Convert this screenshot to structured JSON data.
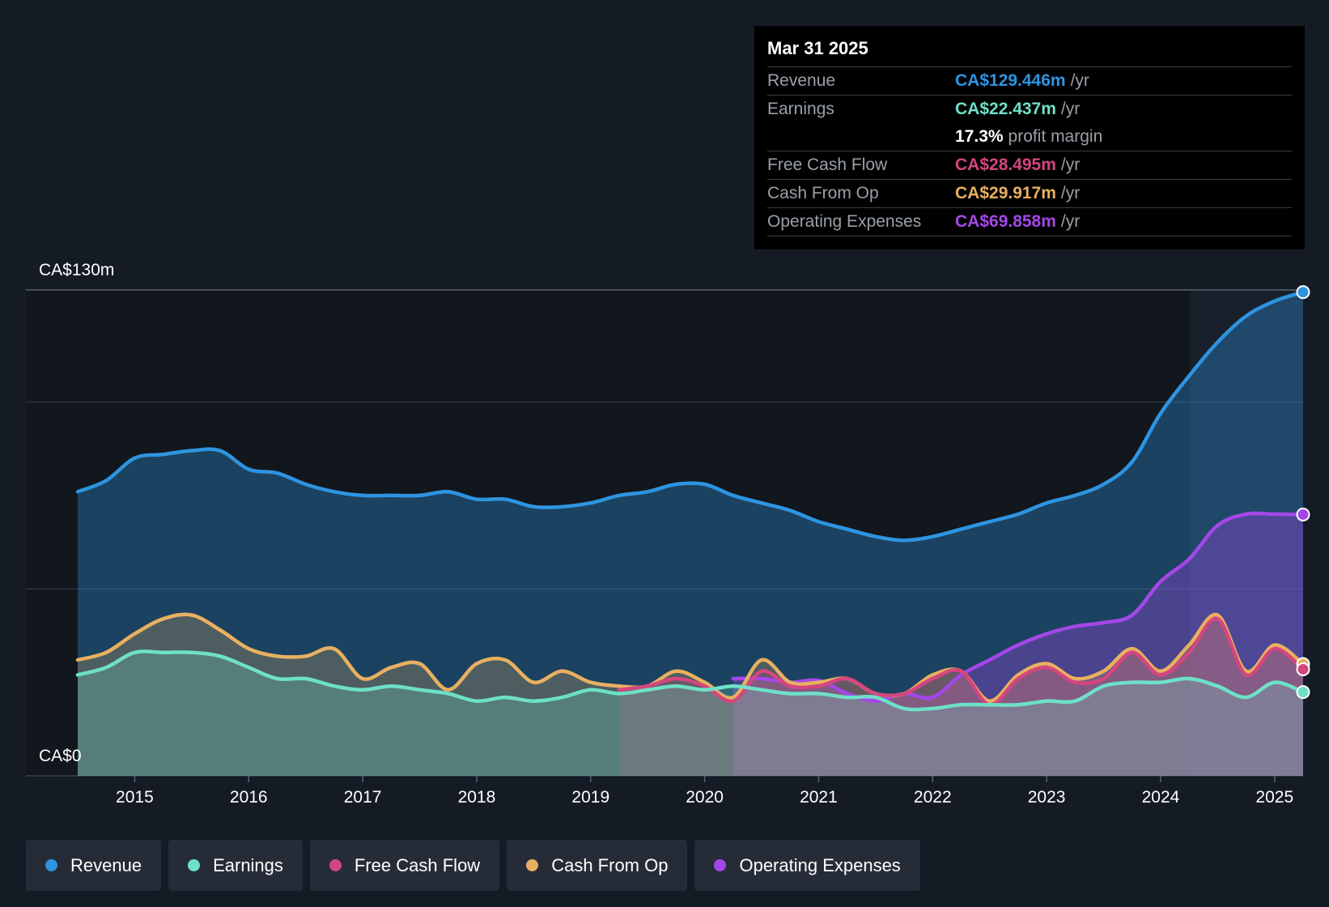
{
  "chart_data": {
    "type": "area",
    "y_axis": {
      "top_label": "CA$130m",
      "bottom_label": "CA$0",
      "ylim": [
        0,
        130
      ]
    },
    "x_axis": {
      "ticks": [
        "2015",
        "2016",
        "2017",
        "2018",
        "2019",
        "2020",
        "2021",
        "2022",
        "2023",
        "2024",
        "2025"
      ],
      "xlim": [
        2014.5,
        2025.25
      ]
    },
    "colors": {
      "Revenue": "#2e94e0",
      "Earnings": "#6ee0c8",
      "Free Cash Flow": "#d4467f",
      "Cash From Op": "#e8b060",
      "Operating Expenses": "#a447e8"
    },
    "series": [
      {
        "name": "Revenue",
        "x": [
          2014.5,
          2014.75,
          2015.0,
          2015.25,
          2015.5,
          2015.75,
          2016.0,
          2016.25,
          2016.5,
          2016.75,
          2017.0,
          2017.25,
          2017.5,
          2017.75,
          2018.0,
          2018.25,
          2018.5,
          2018.75,
          2019.0,
          2019.25,
          2019.5,
          2019.75,
          2020.0,
          2020.25,
          2020.5,
          2020.75,
          2021.0,
          2021.25,
          2021.5,
          2021.75,
          2022.0,
          2022.25,
          2022.5,
          2022.75,
          2023.0,
          2023.25,
          2023.5,
          2023.75,
          2024.0,
          2024.25,
          2024.5,
          2024.75,
          2025.0,
          2025.25
        ],
        "values": [
          76,
          79,
          85,
          86,
          87,
          87,
          82,
          81,
          78,
          76,
          75,
          75,
          75,
          76,
          74,
          74,
          72,
          72,
          73,
          75,
          76,
          78,
          78,
          75,
          73,
          71,
          68,
          66,
          64,
          63,
          64,
          66,
          68,
          70,
          73,
          75,
          78,
          84,
          97,
          107,
          116,
          123,
          127,
          129.4
        ]
      },
      {
        "name": "Earnings",
        "x": [
          2014.5,
          2014.75,
          2015.0,
          2015.25,
          2015.5,
          2015.75,
          2016.0,
          2016.25,
          2016.5,
          2016.75,
          2017.0,
          2017.25,
          2017.5,
          2017.75,
          2018.0,
          2018.25,
          2018.5,
          2018.75,
          2019.0,
          2019.25,
          2019.5,
          2019.75,
          2020.0,
          2020.25,
          2020.5,
          2020.75,
          2021.0,
          2021.25,
          2021.5,
          2021.75,
          2022.0,
          2022.25,
          2022.5,
          2022.75,
          2023.0,
          2023.25,
          2023.5,
          2023.75,
          2024.0,
          2024.25,
          2024.5,
          2024.75,
          2025.0,
          2025.25
        ],
        "values": [
          27,
          29,
          33,
          33,
          33,
          32,
          29,
          26,
          26,
          24,
          23,
          24,
          23,
          22,
          20,
          21,
          20,
          21,
          23,
          22,
          23,
          24,
          23,
          24,
          23,
          22,
          22,
          21,
          21,
          18,
          18,
          19,
          19,
          19,
          20,
          20,
          24,
          25,
          25,
          26,
          24,
          21,
          25,
          22.4
        ]
      },
      {
        "name": "Free Cash Flow",
        "x": [
          2019.25,
          2019.5,
          2019.75,
          2020.0,
          2020.25,
          2020.5,
          2020.75,
          2021.0,
          2021.25,
          2021.5,
          2021.75,
          2022.0,
          2022.25,
          2022.5,
          2022.75,
          2023.0,
          2023.25,
          2023.5,
          2023.75,
          2024.0,
          2024.25,
          2024.5,
          2024.75,
          2025.0,
          2025.25
        ],
        "values": [
          23,
          24,
          26,
          24,
          20,
          28,
          24,
          24,
          26,
          22,
          22,
          26,
          28,
          19,
          26,
          29,
          25,
          26,
          33,
          27,
          33,
          42,
          27,
          34,
          28.5
        ]
      },
      {
        "name": "Cash From Op",
        "x": [
          2014.5,
          2014.75,
          2015.0,
          2015.25,
          2015.5,
          2015.75,
          2016.0,
          2016.25,
          2016.5,
          2016.75,
          2017.0,
          2017.25,
          2017.5,
          2017.75,
          2018.0,
          2018.25,
          2018.5,
          2018.75,
          2019.0,
          2019.25,
          2019.5,
          2019.75,
          2020.0,
          2020.25,
          2020.5,
          2020.75,
          2021.0,
          2021.25,
          2021.5,
          2021.75,
          2022.0,
          2022.25,
          2022.5,
          2022.75,
          2023.0,
          2023.25,
          2023.5,
          2023.75,
          2024.0,
          2024.25,
          2024.5,
          2024.75,
          2025.0,
          2025.25
        ],
        "values": [
          31,
          33,
          38,
          42,
          43,
          39,
          34,
          32,
          32,
          34,
          26,
          29,
          30,
          23,
          30,
          31,
          25,
          28,
          25,
          24,
          24,
          28,
          25,
          21,
          31,
          25,
          25,
          26,
          22,
          22,
          27,
          28,
          20,
          27,
          30,
          26,
          28,
          34,
          28,
          35,
          43,
          28,
          35,
          29.9
        ]
      },
      {
        "name": "Operating Expenses",
        "x": [
          2020.25,
          2020.5,
          2020.75,
          2021.0,
          2021.25,
          2021.5,
          2021.75,
          2022.0,
          2022.25,
          2022.5,
          2022.75,
          2023.0,
          2023.25,
          2023.5,
          2023.75,
          2024.0,
          2024.25,
          2024.5,
          2024.75,
          2025.0,
          2025.25
        ],
        "values": [
          26,
          26,
          25,
          25.5,
          22,
          20,
          22,
          21,
          27,
          31,
          35,
          38,
          40,
          41,
          43,
          52,
          58,
          67,
          70,
          70,
          69.9
        ]
      }
    ]
  },
  "tooltip": {
    "date": "Mar 31 2025",
    "rows": [
      {
        "label": "Revenue",
        "value": "CA$129.446m",
        "unit": "/yr",
        "color": "#2e94e0"
      },
      {
        "label": "Earnings",
        "value": "CA$22.437m",
        "unit": "/yr",
        "color": "#6ee0c8"
      },
      {
        "label": "",
        "value": "17.3%",
        "unit": "profit margin",
        "color": "#ffffff"
      },
      {
        "label": "Free Cash Flow",
        "value": "CA$28.495m",
        "unit": "/yr",
        "color": "#d4467f"
      },
      {
        "label": "Cash From Op",
        "value": "CA$29.917m",
        "unit": "/yr",
        "color": "#e8b060"
      },
      {
        "label": "Operating Expenses",
        "value": "CA$69.858m",
        "unit": "/yr",
        "color": "#a447e8"
      }
    ]
  },
  "legend": [
    {
      "label": "Revenue",
      "color": "#2e94e0"
    },
    {
      "label": "Earnings",
      "color": "#6ee0c8"
    },
    {
      "label": "Free Cash Flow",
      "color": "#d4467f"
    },
    {
      "label": "Cash From Op",
      "color": "#e8b060"
    },
    {
      "label": "Operating Expenses",
      "color": "#a447e8"
    }
  ]
}
